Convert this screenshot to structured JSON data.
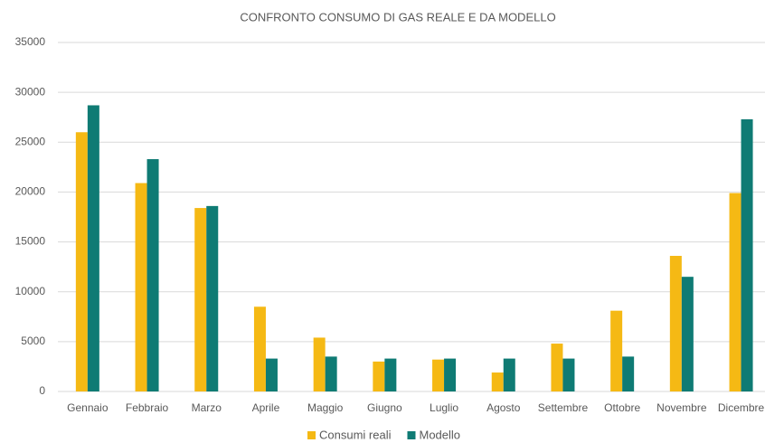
{
  "chart_data": {
    "type": "bar",
    "title": "CONFRONTO CONSUMO DI GAS REALE E DA MODELLO",
    "categories": [
      "Gennaio",
      "Febbraio",
      "Marzo",
      "Aprile",
      "Maggio",
      "Giugno",
      "Luglio",
      "Agosto",
      "Settembre",
      "Ottobre",
      "Novembre",
      "Dicembre"
    ],
    "series": [
      {
        "name": "Consumi reali",
        "color": "#f5b914",
        "values": [
          26000,
          20900,
          18400,
          8500,
          5400,
          3000,
          3200,
          1900,
          4800,
          8100,
          13600,
          19900
        ]
      },
      {
        "name": "Modello",
        "color": "#0f7b74",
        "values": [
          28700,
          23300,
          18600,
          3300,
          3500,
          3300,
          3300,
          3300,
          3300,
          3500,
          11500,
          27300
        ]
      }
    ],
    "ylim": [
      0,
      35000
    ],
    "yticks": [
      0,
      5000,
      10000,
      15000,
      20000,
      25000,
      30000,
      35000
    ],
    "grid": true,
    "legend": "bottom"
  }
}
